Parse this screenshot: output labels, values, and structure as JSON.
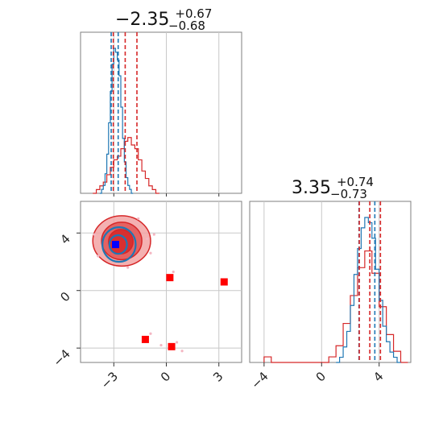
{
  "chart_data": {
    "type": "corner",
    "colors": {
      "blue": "#1f77b4",
      "red": "#d62728",
      "blue_marker": "#0000ff",
      "red_marker": "#ff0000",
      "red_fill_light": "#f2a3a3",
      "red_fill_mid": "#e05555",
      "red_fill_dark": "#d62728",
      "scatter_pink": "#f4b6c2"
    },
    "param1": {
      "title_value": "−2.35",
      "title_plus": "+0.67",
      "title_minus": "−0.68",
      "range": [
        -4.9,
        4.3
      ],
      "ticks": [
        -3,
        0,
        3
      ],
      "tick_labels": [
        "−3",
        "0",
        "3"
      ]
    },
    "param2": {
      "title_value": "3.35",
      "title_plus": "+0.74",
      "title_minus": "−0.73",
      "range": [
        -5.0,
        6.2
      ],
      "ticks": [
        -4,
        0,
        4
      ],
      "tick_labels": [
        "−4",
        "0",
        "4"
      ]
    },
    "hist1_blue": {
      "bin_edges": [
        -3.8,
        -3.7,
        -3.6,
        -3.5,
        -3.4,
        -3.3,
        -3.2,
        -3.1,
        -3.0,
        -2.9,
        -2.8,
        -2.7,
        -2.6,
        -2.5,
        -2.4,
        -2.3,
        -2.2,
        -2.1,
        -2.0,
        -1.9
      ],
      "counts": [
        0,
        1,
        2,
        5,
        10,
        18,
        26,
        33,
        37,
        36,
        34,
        30,
        22,
        14,
        8,
        4,
        2,
        1,
        0
      ],
      "quantile_lines": [
        -3.15,
        -2.75
      ]
    },
    "hist1_red": {
      "bin_edges": [
        -4.2,
        -4.0,
        -3.8,
        -3.6,
        -3.4,
        -3.2,
        -3.0,
        -2.8,
        -2.6,
        -2.4,
        -2.2,
        -2.0,
        -1.8,
        -1.6,
        -1.4,
        -1.2,
        -1.0,
        -0.8,
        -0.6,
        -0.4
      ],
      "counts": [
        0,
        1,
        2,
        3,
        5,
        7,
        9,
        10,
        12,
        14,
        15,
        13,
        12,
        9,
        6,
        4,
        2,
        1,
        0
      ],
      "quantile_lines": [
        -3.03,
        -2.35,
        -1.68
      ]
    },
    "hist2_blue": {
      "bin_edges": [
        1.0,
        1.25,
        1.5,
        1.75,
        2.0,
        2.25,
        2.5,
        2.75,
        3.0,
        3.25,
        3.5,
        3.75,
        4.0,
        4.25,
        4.5,
        4.75,
        5.0,
        5.25,
        5.5
      ],
      "counts": [
        0,
        1,
        3,
        6,
        11,
        17,
        22,
        26,
        28,
        27,
        24,
        18,
        12,
        7,
        4,
        2,
        1,
        0
      ],
      "quantile_lines": [
        2.6,
        3.7
      ]
    },
    "hist2_red": {
      "bin_edges": [
        -4.0,
        -3.5,
        0.5,
        1.0,
        1.5,
        2.0,
        2.5,
        3.0,
        3.5,
        4.0,
        4.5,
        5.0,
        5.5,
        6.0
      ],
      "counts": [
        1,
        0,
        1,
        3,
        7,
        12,
        17,
        20,
        16,
        10,
        5,
        2,
        0
      ],
      "quantile_lines": [
        2.62,
        3.35,
        4.09
      ]
    },
    "scatter_red_squares": [
      {
        "x": 0.2,
        "y": 0.9
      },
      {
        "x": 3.3,
        "y": 0.6
      },
      {
        "x": -1.2,
        "y": -3.4
      },
      {
        "x": 0.3,
        "y": -3.9
      }
    ],
    "scatter_blue_square": {
      "x": -2.9,
      "y": 3.2
    },
    "contour_red": [
      {
        "level": "outer",
        "cx": -2.55,
        "cy": 3.45,
        "rx": 1.65,
        "ry": 1.75
      },
      {
        "level": "mid",
        "cx": -2.55,
        "cy": 3.45,
        "rx": 1.15,
        "ry": 1.3
      },
      {
        "level": "inner",
        "cx": -2.6,
        "cy": 3.4,
        "rx": 0.7,
        "ry": 0.85
      }
    ],
    "contour_blue": [
      {
        "level": "outer",
        "cx": -2.7,
        "cy": 3.2,
        "rx": 0.95,
        "ry": 1.2
      },
      {
        "level": "inner",
        "cx": -2.75,
        "cy": 3.2,
        "rx": 0.5,
        "ry": 0.65
      }
    ],
    "grid": true
  }
}
